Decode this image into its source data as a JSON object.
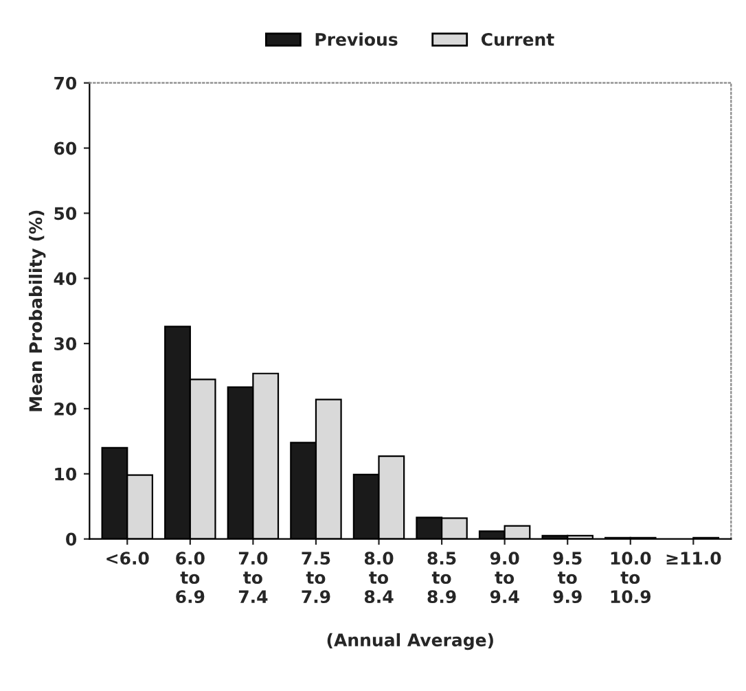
{
  "chart_data": {
    "type": "bar",
    "xlabel": "(Annual Average)",
    "ylabel": "Mean Probability (%)",
    "categories": [
      "<6.0",
      "6.0\nto\n6.9",
      "7.0\nto\n7.4",
      "7.5\nto\n7.9",
      "8.0\nto\n8.4",
      "8.5\nto\n8.9",
      "9.0\nto\n9.4",
      "9.5\nto\n9.9",
      "10.0\nto\n10.9",
      "≥11.0"
    ],
    "series": [
      {
        "name": "Previous",
        "color": "#1a1a1a",
        "values": [
          14.0,
          32.6,
          23.3,
          14.8,
          9.9,
          3.3,
          1.2,
          0.5,
          0.2,
          null
        ]
      },
      {
        "name": "Current",
        "color": "#d9d9d9",
        "values": [
          9.8,
          24.5,
          25.4,
          21.4,
          12.7,
          3.2,
          2.0,
          0.5,
          0.2,
          0.2
        ]
      }
    ],
    "ylim": [
      0,
      70
    ],
    "yticks": [
      0,
      10,
      20,
      30,
      40,
      50,
      60,
      70
    ],
    "grid": false,
    "legend": "top"
  }
}
